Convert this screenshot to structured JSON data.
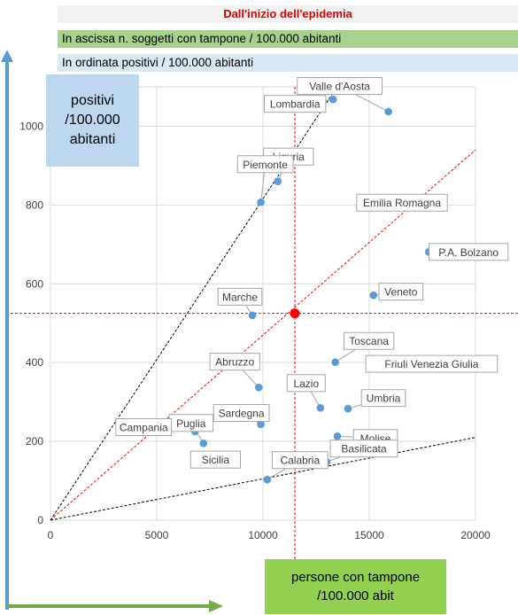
{
  "header": {
    "title": "Dall'inizio dell'epidemia",
    "x_note": "In ascissa n. soggetti con tampone / 100.000 abitanti",
    "y_note": "In ordinata positivi / 100.000 abitanti"
  },
  "y_box": {
    "line1": "positivi",
    "line2": "/100.000",
    "line3": "abitanti"
  },
  "x_box": {
    "line1": "persone con tampone",
    "line2": "/100.000 abit"
  },
  "colors": {
    "point": "#5b9bd5",
    "mean_point": "#ff0000",
    "mean_line": "#ff0000",
    "arrow_y": "#5b9bd5",
    "arrow_x": "#70ad47"
  },
  "chart_data": {
    "type": "scatter",
    "xlim": [
      0,
      20000
    ],
    "ylim": [
      0,
      1100
    ],
    "x_ticks": [
      0,
      5000,
      10000,
      15000,
      20000
    ],
    "x_tick_labels": [
      "0",
      "5000",
      "10000",
      "15000",
      "20000"
    ],
    "y_ticks": [
      0,
      200,
      400,
      600,
      800,
      1000
    ],
    "y_tick_labels": [
      "0",
      "200",
      "400",
      "600",
      "800",
      "1000"
    ],
    "grid": true,
    "points": [
      {
        "label": "Valle d'Aosta",
        "x": 15900,
        "y": 1037
      },
      {
        "label": "Lombardia",
        "x": 13300,
        "y": 1068
      },
      {
        "label": "Liguria",
        "x": 10700,
        "y": 860
      },
      {
        "label": "Piemonte",
        "x": 9900,
        "y": 807
      },
      {
        "label": "Emilia Romagna",
        "x": 15000,
        "y": 797
      },
      {
        "label": "P.A. Bolzano",
        "x": 17800,
        "y": 681
      },
      {
        "label": "Veneto",
        "x": 15200,
        "y": 571
      },
      {
        "label": "Marche",
        "x": 9500,
        "y": 520
      },
      {
        "label": "Toscana",
        "x": 13400,
        "y": 401
      },
      {
        "label": "Friuli Venezia Giulia",
        "x": 15100,
        "y": 390
      },
      {
        "label": "Abruzzo",
        "x": 9800,
        "y": 337
      },
      {
        "label": "Lazio",
        "x": 12700,
        "y": 285
      },
      {
        "label": "Umbria",
        "x": 14000,
        "y": 283
      },
      {
        "label": "Puglia",
        "x": 7200,
        "y": 195
      },
      {
        "label": "Campania",
        "x": 6800,
        "y": 225
      },
      {
        "label": "Sardegna",
        "x": 9900,
        "y": 243
      },
      {
        "label": "Molise",
        "x": 13500,
        "y": 213
      },
      {
        "label": "Basilicata",
        "x": 13000,
        "y": 148
      },
      {
        "label": "Sicilia",
        "x": 7100,
        "y": 147
      },
      {
        "label": "Calabria",
        "x": 10200,
        "y": 103
      }
    ],
    "mean_point": {
      "x": 11500,
      "y": 525
    },
    "trend_lines": [
      {
        "kind": "dashed-black",
        "from": [
          0,
          0
        ],
        "to": [
          13300,
          1085
        ]
      },
      {
        "kind": "dashed-red",
        "from": [
          0,
          0
        ],
        "to": [
          20000,
          940
        ]
      },
      {
        "kind": "dashed-black",
        "from": [
          0,
          0
        ],
        "to": [
          20000,
          210
        ]
      }
    ]
  }
}
